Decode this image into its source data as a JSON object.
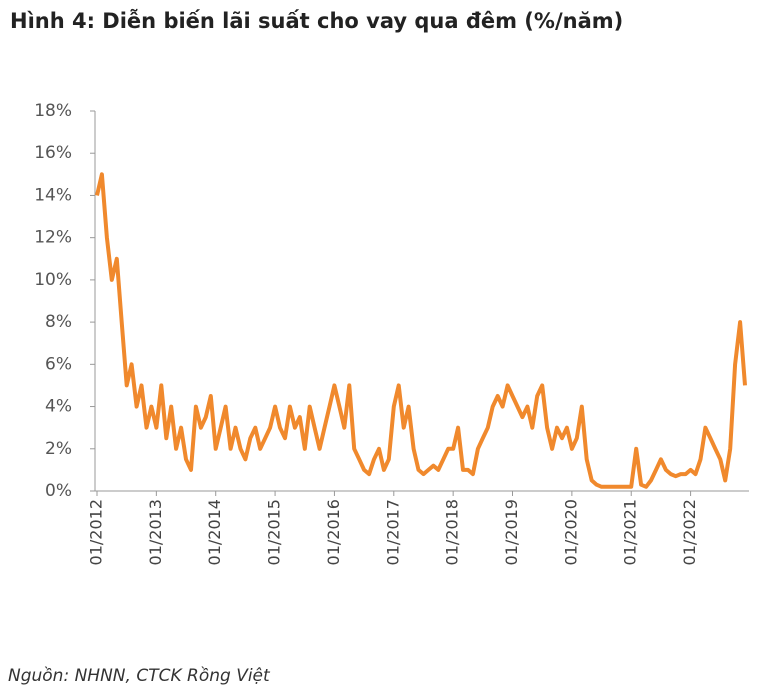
{
  "chart_data": {
    "type": "line",
    "title": "Hình 4: Diễn biến lãi suất cho vay qua đêm (%/năm)",
    "source": "Nguồn: NHNN, CTCK Rồng Việt",
    "x": [
      "01/2012",
      "02/2012",
      "03/2012",
      "04/2012",
      "05/2012",
      "06/2012",
      "07/2012",
      "08/2012",
      "09/2012",
      "10/2012",
      "11/2012",
      "12/2012",
      "01/2013",
      "02/2013",
      "03/2013",
      "04/2013",
      "05/2013",
      "06/2013",
      "07/2013",
      "08/2013",
      "09/2013",
      "10/2013",
      "11/2013",
      "12/2013",
      "01/2014",
      "02/2014",
      "03/2014",
      "04/2014",
      "05/2014",
      "06/2014",
      "07/2014",
      "08/2014",
      "09/2014",
      "10/2014",
      "11/2014",
      "12/2014",
      "01/2015",
      "02/2015",
      "03/2015",
      "04/2015",
      "05/2015",
      "06/2015",
      "07/2015",
      "08/2015",
      "09/2015",
      "10/2015",
      "11/2015",
      "12/2015",
      "01/2016",
      "02/2016",
      "03/2016",
      "04/2016",
      "05/2016",
      "06/2016",
      "07/2016",
      "08/2016",
      "09/2016",
      "10/2016",
      "11/2016",
      "12/2016",
      "01/2017",
      "02/2017",
      "03/2017",
      "04/2017",
      "05/2017",
      "06/2017",
      "07/2017",
      "08/2017",
      "09/2017",
      "10/2017",
      "11/2017",
      "12/2017",
      "01/2018",
      "02/2018",
      "03/2018",
      "04/2018",
      "05/2018",
      "06/2018",
      "07/2018",
      "08/2018",
      "09/2018",
      "10/2018",
      "11/2018",
      "12/2018",
      "01/2019",
      "02/2019",
      "03/2019",
      "04/2019",
      "05/2019",
      "06/2019",
      "07/2019",
      "08/2019",
      "09/2019",
      "10/2019",
      "11/2019",
      "12/2019",
      "01/2020",
      "02/2020",
      "03/2020",
      "04/2020",
      "05/2020",
      "06/2020",
      "07/2020",
      "08/2020",
      "09/2020",
      "10/2020",
      "11/2020",
      "12/2020",
      "01/2021",
      "02/2021",
      "03/2021",
      "04/2021",
      "05/2021",
      "06/2021",
      "07/2021",
      "08/2021",
      "09/2021",
      "10/2021",
      "11/2021",
      "12/2021",
      "01/2022",
      "02/2022",
      "03/2022",
      "04/2022",
      "05/2022",
      "06/2022",
      "07/2022",
      "08/2022",
      "09/2022",
      "10/2022",
      "11/2022",
      "12/2022"
    ],
    "series": [
      {
        "color": "#f0892d",
        "values": [
          14,
          15,
          12,
          10,
          11,
          8,
          5,
          6,
          4,
          5,
          3,
          4,
          3,
          5,
          2.5,
          4,
          2,
          3,
          1.5,
          1,
          4,
          3,
          3.5,
          4.5,
          2,
          3,
          4,
          2,
          3,
          2,
          1.5,
          2.5,
          3,
          2,
          2.5,
          3,
          4,
          3,
          2.5,
          4,
          3,
          3.5,
          2,
          4,
          3,
          2,
          3,
          4,
          5,
          4,
          3,
          5,
          2,
          1.5,
          1,
          0.8,
          1.5,
          2,
          1,
          1.5,
          4,
          5,
          3,
          4,
          2,
          1,
          0.8,
          1,
          1.2,
          1,
          1.5,
          2,
          2,
          3,
          1,
          1,
          0.8,
          2,
          2.5,
          3,
          4,
          4.5,
          4,
          5,
          4.5,
          4,
          3.5,
          4,
          3,
          4.5,
          5,
          3,
          2,
          3,
          2.5,
          3,
          2,
          2.5,
          4,
          1.5,
          0.5,
          0.3,
          0.2,
          0.2,
          0.2,
          0.2,
          0.2,
          0.2,
          0.2,
          2,
          0.3,
          0.2,
          0.5,
          1,
          1.5,
          1,
          0.8,
          0.7,
          0.8,
          0.8,
          1,
          0.8,
          1.5,
          3,
          2.5,
          2,
          1.5,
          0.5,
          2,
          6,
          8,
          5
        ]
      }
    ],
    "xticks": [
      "01/2012",
      "01/2013",
      "01/2014",
      "01/2015",
      "01/2016",
      "01/2017",
      "01/2018",
      "01/2019",
      "01/2020",
      "01/2021",
      "01/2022"
    ],
    "ylim": [
      0,
      18
    ],
    "yticks": [
      {
        "value": 0,
        "label": "0%"
      },
      {
        "value": 2,
        "label": "2%"
      },
      {
        "value": 4,
        "label": "4%"
      },
      {
        "value": 6,
        "label": "6%"
      },
      {
        "value": 8,
        "label": "8%"
      },
      {
        "value": 10,
        "label": "10%"
      },
      {
        "value": 12,
        "label": "12%"
      },
      {
        "value": 14,
        "label": "14%"
      },
      {
        "value": 16,
        "label": "16%"
      },
      {
        "value": 18,
        "label": "18%"
      }
    ]
  }
}
